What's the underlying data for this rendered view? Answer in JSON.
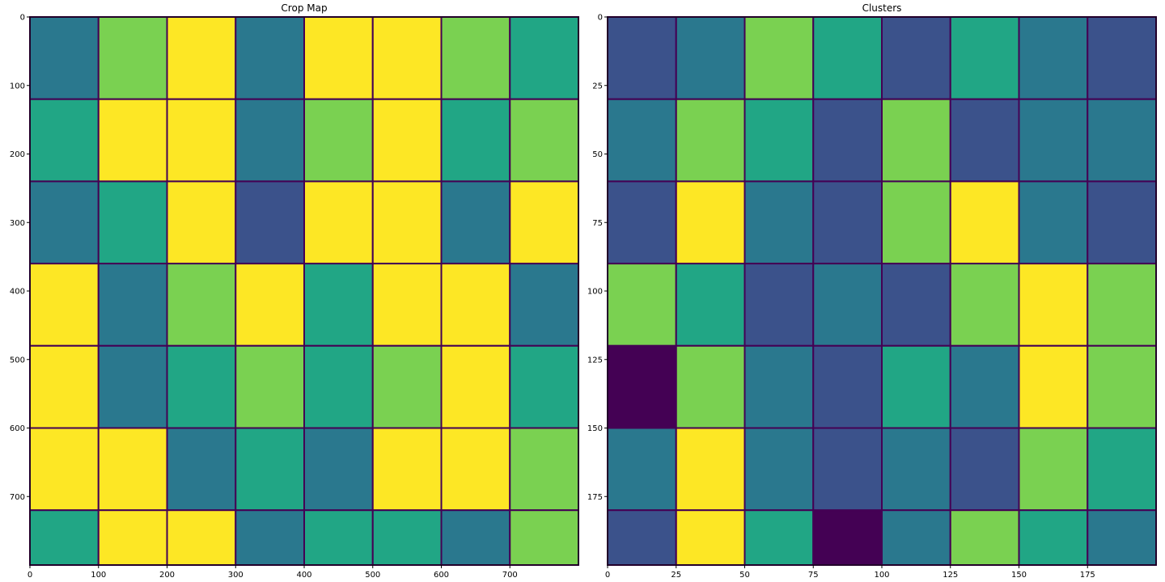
{
  "chart_data": [
    {
      "type": "heatmap",
      "title": "Crop Map",
      "colormap": "viridis",
      "palette": [
        "#440154",
        "#3b528b",
        "#2a788e",
        "#21a685",
        "#7ad151",
        "#fde725"
      ],
      "shape": [
        800,
        800
      ],
      "xlim": [
        0,
        800
      ],
      "ylim": [
        800,
        0
      ],
      "x_ticks": [
        0,
        100,
        200,
        300,
        400,
        500,
        600,
        700
      ],
      "y_ticks": [
        0,
        100,
        200,
        300,
        400,
        500,
        600,
        700
      ],
      "cells": {
        "x_edges": [
          0,
          100,
          200,
          300,
          400,
          500,
          600,
          700,
          800
        ],
        "y_edges": [
          0,
          120,
          240,
          360,
          480,
          600,
          720,
          800
        ],
        "values": [
          [
            2,
            4,
            5,
            2,
            5,
            5,
            4,
            3
          ],
          [
            3,
            5,
            5,
            2,
            4,
            5,
            3,
            4
          ],
          [
            2,
            3,
            5,
            1,
            5,
            5,
            2,
            5
          ],
          [
            5,
            2,
            4,
            5,
            3,
            5,
            5,
            2
          ],
          [
            5,
            2,
            3,
            4,
            3,
            4,
            5,
            3
          ],
          [
            5,
            5,
            2,
            3,
            2,
            5,
            5,
            4
          ],
          [
            3,
            5,
            5,
            2,
            3,
            3,
            2,
            4
          ]
        ]
      }
    },
    {
      "type": "heatmap",
      "title": "Clusters",
      "colormap": "viridis",
      "palette": [
        "#440154",
        "#3b528b",
        "#2a788e",
        "#21a685",
        "#7ad151",
        "#fde725"
      ],
      "shape": [
        200,
        200
      ],
      "xlim": [
        0,
        200
      ],
      "ylim": [
        200,
        0
      ],
      "x_ticks": [
        0,
        25,
        50,
        75,
        100,
        125,
        150,
        175
      ],
      "y_ticks": [
        0,
        25,
        50,
        75,
        100,
        125,
        150,
        175
      ],
      "cells": {
        "x_edges": [
          0,
          25,
          50,
          75,
          100,
          125,
          150,
          175,
          200
        ],
        "y_edges": [
          0,
          30,
          60,
          90,
          120,
          150,
          180,
          200
        ],
        "values": [
          [
            1,
            2,
            4,
            3,
            1,
            3,
            2,
            1
          ],
          [
            2,
            4,
            3,
            1,
            4,
            1,
            2,
            2
          ],
          [
            1,
            5,
            2,
            1,
            4,
            5,
            2,
            1
          ],
          [
            4,
            3,
            1,
            2,
            1,
            4,
            5,
            4
          ],
          [
            0,
            4,
            2,
            1,
            3,
            2,
            5,
            4
          ],
          [
            2,
            5,
            2,
            1,
            2,
            1,
            4,
            3
          ],
          [
            1,
            5,
            3,
            0,
            2,
            4,
            3,
            2
          ]
        ]
      }
    }
  ]
}
